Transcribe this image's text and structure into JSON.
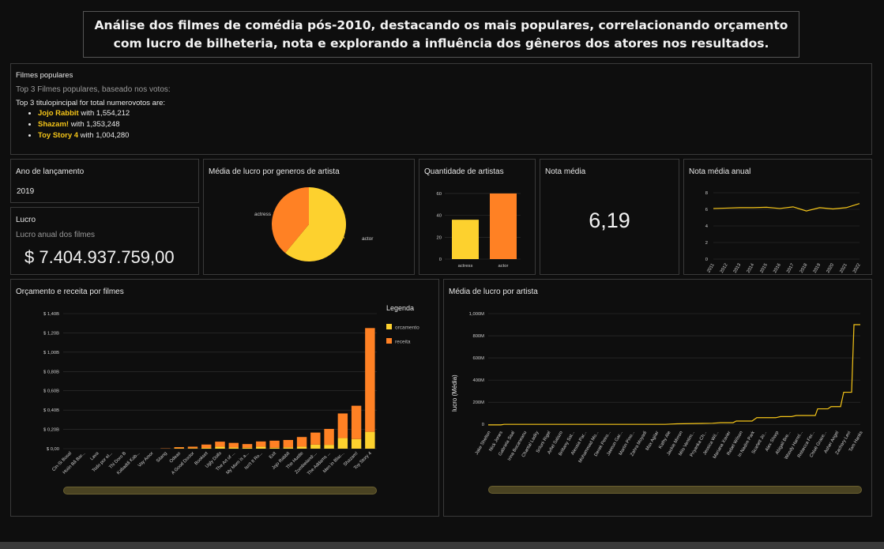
{
  "header": {
    "title": "Análise dos filmes de comédia pós-2010, destacando os mais populares, correlacionando orçamento com lucro de bilheteria, nota e explorando a influência dos gêneros dos atores nos resultados."
  },
  "popular": {
    "title": "Filmes populares",
    "subtitle": "Top 3 Filmes populares, baseado nos votos:",
    "intro": "Top 3 titulopincipal for total numerovotos are:",
    "items": [
      {
        "name": "Jojo Rabbit",
        "text": " with 1,554,212"
      },
      {
        "name": "Shazam!",
        "text": " with 1,353,248"
      },
      {
        "name": "Toy Story 4",
        "text": " with 1,004,280"
      }
    ]
  },
  "ano": {
    "title": "Ano de lançamento",
    "value": "2019"
  },
  "lucro": {
    "title": "Lucro",
    "subtitle": "Lucro anual dos filmes",
    "value": "$ 7.404.937.759,00"
  },
  "nota": {
    "title": "Nota média",
    "value": "6,19"
  },
  "colors": {
    "yellow": "#fdd12e",
    "orange": "#ff8124",
    "line": "#f5c518"
  },
  "chart_data": [
    {
      "type": "pie",
      "title": "Média de lucro por generos de artista",
      "slices": [
        {
          "label": "actor",
          "value": 61
        },
        {
          "label": "actress",
          "value": 39
        }
      ]
    },
    {
      "type": "bar",
      "title": "Quantidade de artistas",
      "categories": [
        "actress",
        "actor"
      ],
      "values": [
        36,
        60
      ],
      "yticks": [
        "0",
        "20",
        "40",
        "60"
      ],
      "ylim": [
        0,
        65
      ]
    },
    {
      "type": "line",
      "title": "Nota média anual",
      "x": [
        "2011",
        "2012",
        "2013",
        "2014",
        "2015",
        "2016",
        "2017",
        "2018",
        "2019",
        "2020",
        "2021",
        "2022"
      ],
      "values": [
        6.1,
        6.15,
        6.2,
        6.2,
        6.25,
        6.1,
        6.3,
        5.8,
        6.2,
        6.05,
        6.2,
        6.7
      ],
      "yticks": [
        "0",
        "2",
        "4",
        "6",
        "8"
      ],
      "ylim": [
        0,
        8
      ]
    },
    {
      "type": "bar",
      "stacked": true,
      "title": "Orçamento e receita por filmes",
      "legend_title": "Legenda",
      "series_names": [
        "orcamento",
        "receita"
      ],
      "categories": [
        "Cin-Si Bosal",
        "Hoiin Bă Bar...",
        "Lava",
        "Todo por el...",
        "Thi Doro B",
        "Kabaddi Kab...",
        "Vay Amor",
        "Sitang",
        "Odeas",
        "A Good Doctor",
        "Bookset",
        "Ugly Dolls",
        "The Art of ...",
        "My Mom is a...",
        "Isn't It Ro...",
        "Exit",
        "Jojo Rabbit",
        "The Hustle",
        "Zombieland:...",
        "The Addams ...",
        "Men in Blac...",
        "Shazam!",
        "Toy Story 4"
      ],
      "orcamento": [
        0,
        0,
        0,
        0,
        0,
        0,
        0,
        0,
        0.004,
        0.005,
        0.008,
        0.02,
        0.012,
        0.01,
        0.02,
        0.01,
        0.014,
        0.021,
        0.042,
        0.04,
        0.11,
        0.1,
        0.175
      ],
      "receita": [
        0,
        0,
        0,
        0,
        0,
        0,
        0,
        0.003,
        0.012,
        0.016,
        0.035,
        0.053,
        0.048,
        0.038,
        0.055,
        0.073,
        0.076,
        0.1,
        0.125,
        0.165,
        0.255,
        0.345,
        1.075
      ],
      "yticks": [
        "$ 0,00",
        "$ 0,20B",
        "$ 0,40B",
        "$ 0,60B",
        "$ 0,80B",
        "$ 1,00B",
        "$ 1,20B",
        "$ 1,40B"
      ],
      "ylim": [
        0,
        1.4
      ]
    },
    {
      "type": "line",
      "title": "Média de lucro por artista",
      "ylabel": "lucro (Média)",
      "categories": [
        "Jake Shelton",
        "Nick Jones",
        "Gabriela Saal",
        "Irina Bocaneanu",
        "Chantal Ladky",
        "Sriluni Rigel",
        "Arfiel Salazo",
        "Brittany Sat...",
        "Alessia Par...",
        "Mohammad Mo...",
        "Derek Petro...",
        "Jaeeun Gar...",
        "Martin Pino...",
        "Zahra Moyadi",
        "Max Agilar",
        "Kathy Ale",
        "Jackie Mirron",
        "Milo Ventim...",
        "Priyanka Ch...",
        "Jessica Wil...",
        "Mariana Xavier",
        "Rebel Wilson",
        "In Nadim Park",
        "Scarlett Jo...",
        "Alex Sharp",
        "Abigail Bre...",
        "Woody Harrel...",
        "Rebecca Fer...",
        "Chloë Grace...",
        "Asher Angel",
        "Zachary Levi",
        "Tom Hanks"
      ],
      "yticks": [
        "0",
        "200M",
        "400M",
        "600M",
        "800M",
        "1,000M"
      ],
      "ylim": [
        -20,
        1000
      ]
    }
  ]
}
